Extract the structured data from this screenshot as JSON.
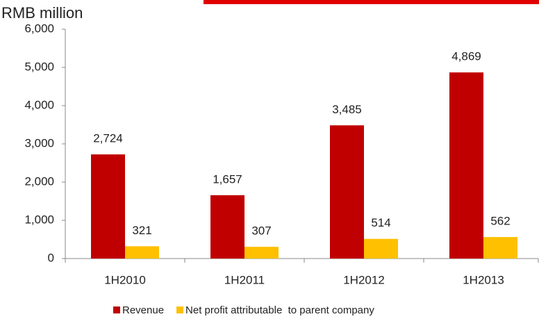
{
  "chart_data": {
    "type": "bar",
    "title": "RMB million",
    "categories": [
      "1H2010",
      "1H2011",
      "1H2012",
      "1H2013"
    ],
    "series": [
      {
        "name": "Revenue",
        "color": "#c00000",
        "values": [
          2724,
          1657,
          3485,
          4869
        ],
        "value_labels": [
          "2,724",
          "1,657",
          "3,485",
          "4,869"
        ]
      },
      {
        "name": "Net profit attributable  to parent company",
        "color": "#ffc000",
        "values": [
          321,
          307,
          514,
          562
        ]
      }
    ],
    "ylim": [
      0,
      6000
    ],
    "yticks": [
      0,
      {
        "value": 1000,
        "label": "1,000"
      },
      {
        "value": 2000,
        "label": "2,000"
      },
      {
        "value": 3000,
        "label": "3,000"
      },
      {
        "value": 4000,
        "label": "4,000"
      },
      {
        "value": 5000,
        "label": "5,000"
      },
      {
        "value": 6000,
        "label": "6,000"
      }
    ],
    "legend": "bottom"
  }
}
